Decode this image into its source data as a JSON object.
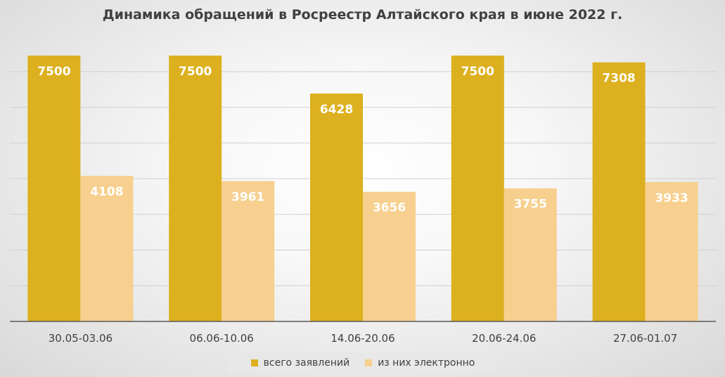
{
  "chart_data": {
    "type": "bar",
    "title": "Динамика обращений в Росреестр Алтайского края в июне 2022 г.",
    "categories": [
      "30.05-03.06",
      "06.06-10.06",
      "14.06-20.06",
      "20.06-24.06",
      "27.06-01.07"
    ],
    "series": [
      {
        "name": "всего заявлений",
        "values": [
          7500,
          7500,
          6428,
          7500,
          7308
        ],
        "color": "#dcb01e"
      },
      {
        "name": "из них электронно",
        "values": [
          4108,
          3961,
          3656,
          3755,
          3933
        ],
        "color": "#f7d08f"
      }
    ],
    "ylim": [
      0,
      7500
    ],
    "grid": true,
    "y_tick_labels_visible": false,
    "legend_position": "bottom",
    "data_labels": true,
    "data_label_color": "#ffffff"
  }
}
